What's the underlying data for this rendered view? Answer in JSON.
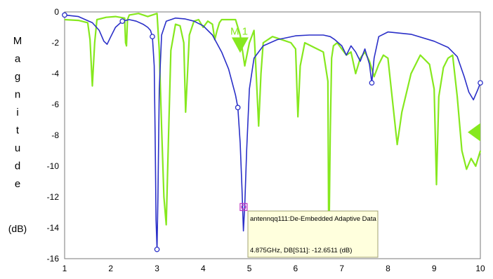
{
  "chart_data": {
    "type": "line",
    "xlim": [
      1,
      10
    ],
    "ylim": [
      -16,
      0
    ],
    "x_ticks": [
      "1",
      "2",
      "3",
      "4",
      "5",
      "6",
      "7",
      "8",
      "9",
      "10"
    ],
    "y_ticks": [
      "0",
      "-2",
      "-4",
      "-6",
      "-8",
      "-10",
      "-12",
      "-14",
      "-16"
    ],
    "ylabel_letters": [
      "M",
      "a",
      "g",
      "n",
      "i",
      "t",
      "u",
      "d",
      "e"
    ],
    "ylabel_unit": "(dB)",
    "grid": false,
    "colors": {
      "blue_series": "#2a2fc8",
      "green_series": "#86e81e",
      "tooltip_marker": "#c030c0"
    },
    "series": [
      {
        "color": "#2a2fc8",
        "x": [
          1.0,
          1.3,
          1.6,
          1.75,
          1.85,
          1.92,
          2.0,
          2.1,
          2.25,
          2.4,
          2.55,
          2.7,
          2.8,
          2.86,
          2.9,
          2.94,
          2.96,
          2.98,
          3.0,
          3.02,
          3.05,
          3.1,
          3.2,
          3.4,
          3.6,
          3.8,
          4.0,
          4.2,
          4.4,
          4.55,
          4.7,
          4.75,
          4.8,
          4.84,
          4.87,
          4.9,
          4.94,
          5.0,
          5.1,
          5.3,
          5.6,
          6.0,
          6.3,
          6.6,
          6.75,
          6.85,
          7.0,
          7.1,
          7.2,
          7.3,
          7.4,
          7.5,
          7.6,
          7.65,
          7.7,
          7.8,
          8.0,
          8.5,
          9.0,
          9.3,
          9.5,
          9.65,
          9.75,
          9.85,
          9.95,
          10.0
        ],
        "y": [
          -0.2,
          -0.3,
          -0.7,
          -1.2,
          -1.9,
          -2.1,
          -1.6,
          -1.0,
          -0.6,
          -0.5,
          -0.6,
          -0.8,
          -1.0,
          -1.2,
          -1.6,
          -3.5,
          -8.0,
          -13.5,
          -15.4,
          -12.0,
          -5.0,
          -1.5,
          -0.6,
          -0.4,
          -0.45,
          -0.6,
          -0.9,
          -1.5,
          -2.6,
          -3.7,
          -5.4,
          -6.2,
          -8.5,
          -11.5,
          -14.2,
          -12.6,
          -9.0,
          -5.0,
          -3.0,
          -2.2,
          -1.8,
          -1.55,
          -1.5,
          -1.5,
          -1.6,
          -1.8,
          -2.2,
          -2.8,
          -2.2,
          -2.6,
          -3.2,
          -2.4,
          -3.4,
          -4.6,
          -3.0,
          -1.6,
          -1.3,
          -1.45,
          -1.9,
          -2.3,
          -2.9,
          -4.2,
          -5.2,
          -5.7,
          -5.0,
          -4.6
        ]
      },
      {
        "color": "#86e81e",
        "x": [
          1.0,
          1.3,
          1.5,
          1.55,
          1.6,
          1.65,
          1.7,
          1.9,
          2.1,
          2.3,
          2.32,
          2.34,
          2.36,
          2.4,
          2.6,
          2.8,
          3.0,
          3.05,
          3.1,
          3.15,
          3.2,
          3.25,
          3.3,
          3.4,
          3.5,
          3.58,
          3.62,
          3.66,
          3.7,
          3.8,
          3.9,
          4.0,
          4.1,
          4.2,
          4.25,
          4.3,
          4.35,
          4.4,
          4.55,
          4.7,
          4.8,
          4.9,
          5.0,
          5.1,
          5.15,
          5.2,
          5.25,
          5.3,
          5.5,
          5.7,
          5.9,
          6.0,
          6.05,
          6.1,
          6.2,
          6.4,
          6.6,
          6.7,
          6.72,
          6.75,
          6.78,
          6.82,
          6.9,
          7.0,
          7.1,
          7.2,
          7.3,
          7.4,
          7.5,
          7.6,
          7.7,
          7.8,
          7.9,
          8.0,
          8.1,
          8.2,
          8.3,
          8.5,
          8.7,
          8.9,
          9.0,
          9.05,
          9.1,
          9.2,
          9.3,
          9.4,
          9.5,
          9.6,
          9.7,
          9.8,
          9.9,
          10.0
        ],
        "y": [
          -0.5,
          -0.55,
          -0.7,
          -1.8,
          -4.8,
          -2.0,
          -0.5,
          -0.35,
          -0.3,
          -0.4,
          -2.0,
          -2.2,
          -0.5,
          -0.2,
          -0.1,
          -0.3,
          -0.1,
          -2.5,
          -7.5,
          -12.0,
          -13.8,
          -8.0,
          -2.5,
          -0.8,
          -0.9,
          -2.0,
          -6.5,
          -4.0,
          -1.5,
          -0.6,
          -0.5,
          -1.0,
          -0.6,
          -0.8,
          -1.8,
          -1.2,
          -0.7,
          -0.5,
          -0.5,
          -0.5,
          -1.5,
          -3.5,
          -2.0,
          -1.2,
          -4.2,
          -7.4,
          -4.0,
          -2.0,
          -1.6,
          -1.8,
          -2.0,
          -2.4,
          -6.8,
          -3.5,
          -2.0,
          -2.3,
          -2.6,
          -4.5,
          -15.8,
          -8.0,
          -3.0,
          -2.2,
          -2.0,
          -2.4,
          -2.8,
          -2.6,
          -4.0,
          -3.0,
          -2.6,
          -3.2,
          -4.2,
          -3.4,
          -2.8,
          -3.0,
          -5.8,
          -8.6,
          -6.5,
          -4.0,
          -2.8,
          -3.4,
          -5.0,
          -11.2,
          -5.5,
          -3.6,
          -3.0,
          -2.8,
          -5.5,
          -9.0,
          -10.2,
          -9.5,
          -10.0,
          -9.0
        ]
      }
    ],
    "blue_markers": [
      {
        "x": 1.0,
        "y": -0.2
      },
      {
        "x": 2.25,
        "y": -0.6
      },
      {
        "x": 2.9,
        "y": -1.6
      },
      {
        "x": 3.0,
        "y": -15.4
      },
      {
        "x": 4.75,
        "y": -6.2
      },
      {
        "x": 7.65,
        "y": -4.6
      },
      {
        "x": 10.0,
        "y": -4.6
      }
    ],
    "marker_label": "M 1",
    "marker_point": {
      "x": 4.875,
      "y": -12.6511
    },
    "right_marker": {
      "x": 10.0,
      "y": -7.8
    },
    "tooltip": {
      "line1": "antennqq111:De-Embedded Adaptive Data",
      "line2": "4.875GHz, DB[S11]: -12.6511  (dB)"
    }
  }
}
